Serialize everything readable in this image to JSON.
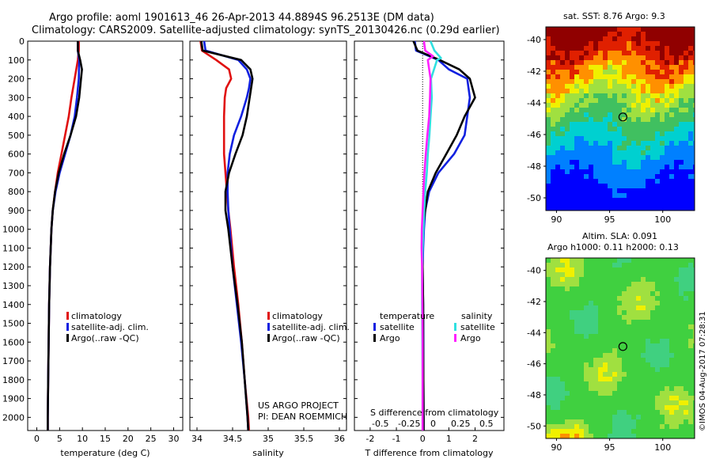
{
  "header": {
    "line1": "Argo profile: aoml 1901613_46 26-Apr-2013 44.8894S 96.2513E (DM data)",
    "line2": "Climatology: CARS2009. Satellite-adjusted climatology: synTS_20130426.nc (0.29d earlier)"
  },
  "depth_ticks": [
    "0",
    "100",
    "200",
    "300",
    "400",
    "500",
    "600",
    "700",
    "800",
    "900",
    "1000",
    "1100",
    "1200",
    "1300",
    "1400",
    "1500",
    "1600",
    "1700",
    "1800",
    "1900",
    "2000"
  ],
  "colors": {
    "clim": "#e01010",
    "sat": "#1020e0",
    "argo": "#000000",
    "sal_sat": "#30e0e0",
    "sal_argo": "#ff20ff"
  },
  "legend": {
    "climatology": "climatology",
    "satellite": "satellite-adj. clim.",
    "argo": "Argo(..raw -QC)"
  },
  "diff_legend": {
    "temperature": "temperature",
    "salinity": "salinity",
    "satellite": "satellite",
    "argo": "Argo",
    "s_label": "S difference from climatology",
    "s_ticks": [
      "-0.5",
      "-0.25",
      "0",
      "0.25",
      "0.5"
    ]
  },
  "project": {
    "line1": "US ARGO PROJECT",
    "line2": "PI: DEAN ROEMMICH"
  },
  "map_sst": {
    "title": "sat. SST: 8.76 Argo: 9.3",
    "yticks": [
      "-40",
      "-42",
      "-44",
      "-46",
      "-48",
      "-50"
    ],
    "xticks": [
      "90",
      "95",
      "100"
    ]
  },
  "map_sla": {
    "title1": "Altim. SLA: 0.091",
    "title2": "Argo h1000: 0.11 h2000: 0.13",
    "yticks": [
      "-40",
      "-42",
      "-44",
      "-46",
      "-48",
      "-50"
    ],
    "xticks": [
      "90",
      "95",
      "100"
    ]
  },
  "credit": "©IMOS 04-Aug-2017 07:28:31",
  "chart_data": [
    {
      "type": "line",
      "xlabel": "temperature (deg C)",
      "ylabel": "",
      "xlim": [
        -2,
        32
      ],
      "ylim": [
        2070,
        0
      ],
      "xticks": [
        "0",
        "5",
        "10",
        "15",
        "20",
        "25",
        "30"
      ],
      "series": [
        {
          "name": "climatology",
          "color": "#e01010",
          "depth": [
            0,
            50,
            100,
            200,
            300,
            400,
            500,
            600,
            700,
            800,
            900,
            1000,
            1200,
            1400,
            1600,
            1800,
            2000,
            2070
          ],
          "values": [
            9.2,
            9.2,
            9.0,
            8.3,
            7.6,
            7.0,
            6.2,
            5.4,
            4.6,
            4.0,
            3.5,
            3.2,
            2.9,
            2.7,
            2.6,
            2.5,
            2.4,
            2.4
          ]
        },
        {
          "name": "satellite-adj. clim.",
          "color": "#1020e0",
          "depth": [
            0,
            50,
            100,
            200,
            300,
            400,
            500,
            600,
            700,
            800,
            900,
            1000,
            1200,
            1400,
            1600,
            1800,
            2000,
            2070
          ],
          "values": [
            9.0,
            9.0,
            9.3,
            9.2,
            8.8,
            8.3,
            7.4,
            6.2,
            5.0,
            4.1,
            3.5,
            3.2,
            2.9,
            2.7,
            2.6,
            2.5,
            2.4,
            2.4
          ]
        },
        {
          "name": "Argo(..raw -QC)",
          "color": "#000000",
          "depth": [
            0,
            50,
            100,
            150,
            200,
            300,
            400,
            500,
            600,
            700,
            800,
            900,
            1000,
            1200,
            1400,
            1600,
            1800,
            2000,
            2070
          ],
          "values": [
            9.0,
            9.0,
            9.5,
            9.9,
            9.7,
            9.3,
            8.6,
            7.4,
            6.0,
            4.8,
            4.0,
            3.5,
            3.2,
            2.9,
            2.7,
            2.6,
            2.5,
            2.4,
            2.4
          ]
        }
      ]
    },
    {
      "type": "line",
      "xlabel": "salinity",
      "xlim": [
        33.9,
        36.1
      ],
      "ylim": [
        2070,
        0
      ],
      "xticks": [
        "34",
        "34.5",
        "35",
        "35.5",
        "36"
      ],
      "series": [
        {
          "name": "climatology",
          "color": "#e01010",
          "depth": [
            0,
            50,
            100,
            150,
            200,
            250,
            300,
            400,
            500,
            600,
            700,
            800,
            900,
            1000,
            1200,
            1400,
            1600,
            1800,
            2000,
            2070
          ],
          "values": [
            34.05,
            34.07,
            34.27,
            34.45,
            34.48,
            34.41,
            34.39,
            34.38,
            34.38,
            34.38,
            34.4,
            34.42,
            34.44,
            34.47,
            34.52,
            34.58,
            34.63,
            34.67,
            34.72,
            34.73
          ]
        },
        {
          "name": "satellite-adj. clim.",
          "color": "#1020e0",
          "depth": [
            0,
            50,
            100,
            150,
            200,
            250,
            300,
            400,
            500,
            600,
            700,
            800,
            900,
            1000,
            1200,
            1400,
            1600,
            1800,
            2000,
            2070
          ],
          "values": [
            34.1,
            34.12,
            34.58,
            34.7,
            34.75,
            34.73,
            34.7,
            34.62,
            34.52,
            34.46,
            34.43,
            34.43,
            34.44,
            34.46,
            34.5,
            34.56,
            34.62,
            34.67,
            34.71,
            34.72
          ]
        },
        {
          "name": "Argo(..raw -QC)",
          "color": "#000000",
          "depth": [
            0,
            50,
            100,
            150,
            200,
            250,
            300,
            400,
            500,
            600,
            700,
            800,
            900,
            1000,
            1200,
            1400,
            1600,
            1800,
            2000,
            2070
          ],
          "values": [
            34.06,
            34.08,
            34.62,
            34.75,
            34.78,
            34.76,
            34.74,
            34.7,
            34.64,
            34.54,
            34.45,
            34.4,
            34.4,
            34.44,
            34.5,
            34.57,
            34.63,
            34.67,
            34.71,
            34.72
          ]
        }
      ]
    },
    {
      "type": "line",
      "xlabel": "T difference from climatology",
      "xlim": [
        -2.6,
        3.1
      ],
      "ylim": [
        2070,
        0
      ],
      "xticks": [
        "-2",
        "-1",
        "0",
        "1",
        "2"
      ],
      "series": [
        {
          "name": "temperature satellite",
          "color": "#1020e0",
          "depth": [
            0,
            50,
            100,
            150,
            200,
            300,
            400,
            500,
            600,
            700,
            800,
            900,
            1000,
            1100,
            1200,
            1400,
            1600,
            1800,
            2000,
            2070
          ],
          "values": [
            -0.3,
            -0.25,
            0.6,
            1.0,
            1.7,
            1.8,
            1.7,
            1.6,
            1.2,
            0.6,
            0.25,
            0.1,
            0.05,
            0.02,
            0.0,
            0.02,
            0.03,
            0.03,
            0.04,
            0.04
          ]
        },
        {
          "name": "temperature Argo",
          "color": "#000000",
          "depth": [
            0,
            50,
            100,
            150,
            200,
            300,
            400,
            500,
            600,
            700,
            800,
            900,
            1000,
            1100,
            1200,
            1400,
            1600,
            1800,
            2000,
            2070
          ],
          "values": [
            -0.35,
            -0.2,
            0.65,
            1.4,
            1.8,
            2.0,
            1.6,
            1.3,
            0.9,
            0.5,
            0.2,
            0.1,
            0.0,
            -0.02,
            0.0,
            0.02,
            0.02,
            0.03,
            0.04,
            0.04
          ]
        },
        {
          "name": "salinity satellite",
          "color": "#30e0e0",
          "depth": [
            0,
            50,
            90,
            100,
            200,
            300,
            400,
            500,
            600,
            700,
            800,
            900,
            1000,
            1100,
            1200,
            1400,
            1600,
            1800,
            2000,
            2070
          ],
          "values": [
            0.3,
            0.45,
            0.7,
            0.55,
            0.32,
            0.35,
            0.3,
            0.26,
            0.2,
            0.16,
            0.1,
            0.06,
            0.03,
            0.0,
            -0.02,
            -0.02,
            -0.01,
            0.0,
            0.0,
            0.0
          ]
        },
        {
          "name": "salinity Argo",
          "color": "#ff20ff",
          "depth": [
            0,
            50,
            80,
            100,
            200,
            300,
            400,
            500,
            600,
            700,
            800,
            900,
            1000,
            1100,
            1200,
            1400,
            1600,
            1800,
            2000,
            2070
          ],
          "values": [
            0.05,
            0.1,
            0.4,
            0.2,
            0.3,
            0.28,
            0.25,
            0.18,
            0.12,
            0.07,
            0.03,
            0.0,
            -0.03,
            -0.04,
            -0.02,
            -0.01,
            0.0,
            0.0,
            0.0,
            0.0
          ]
        }
      ]
    },
    {
      "type": "heatmap",
      "title": "sat. SST: 8.76 Argo: 9.3",
      "xlim": [
        89,
        103
      ],
      "ylim": [
        -50.8,
        -39.2
      ],
      "marker": {
        "lon": 96.25,
        "lat": -44.89
      }
    },
    {
      "type": "heatmap",
      "title": "Altim. SLA: 0.091",
      "xlim": [
        89,
        103
      ],
      "ylim": [
        -50.8,
        -39.2
      ],
      "marker": {
        "lon": 96.25,
        "lat": -44.89
      }
    }
  ]
}
